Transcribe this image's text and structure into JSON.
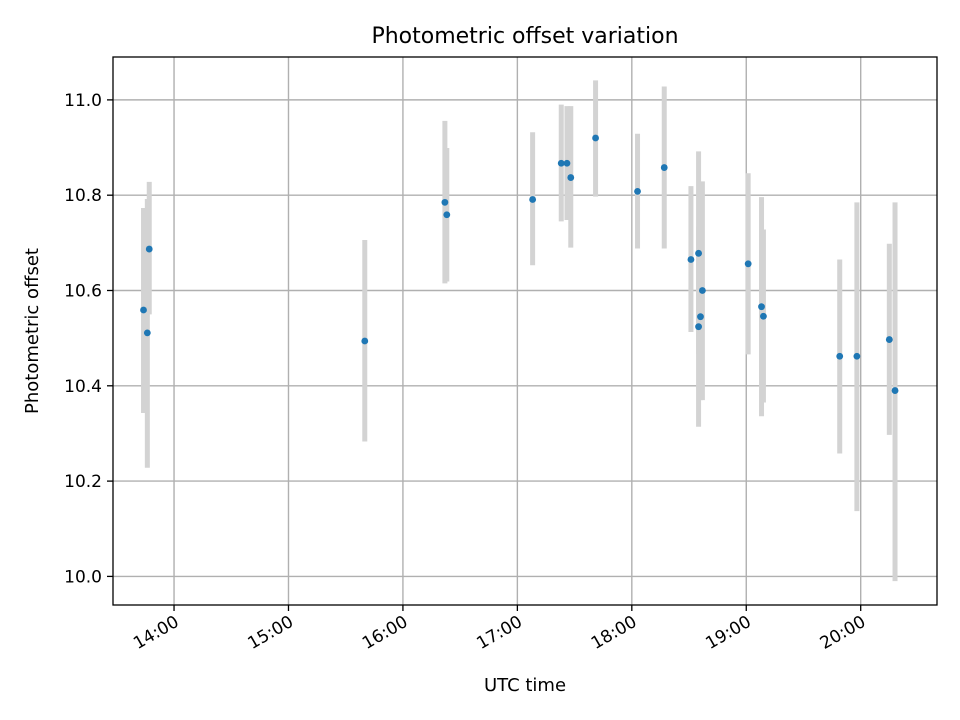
{
  "chart_data": {
    "type": "scatter",
    "title": "Photometric offset variation",
    "xlabel": "UTC time",
    "ylabel": "Photometric offset",
    "x_unit": "UTC time (HH:MM)",
    "xlim": [
      "13:28",
      "20:40"
    ],
    "ylim": [
      9.94,
      11.09
    ],
    "x_ticks": [
      "14:00",
      "15:00",
      "16:00",
      "17:00",
      "18:00",
      "19:00",
      "20:00"
    ],
    "y_ticks": [
      "10.0",
      "10.2",
      "10.4",
      "10.6",
      "10.8",
      "11.0"
    ],
    "grid": true,
    "point_color": "#1f77b4",
    "errorbar_color": "#d3d3d3",
    "points": [
      {
        "x": "13:47",
        "y": 10.687,
        "lo": 10.55,
        "hi": 10.828
      },
      {
        "x": "13:44",
        "y": 10.559,
        "lo": 10.343,
        "hi": 10.773
      },
      {
        "x": "13:46",
        "y": 10.511,
        "lo": 10.228,
        "hi": 10.792
      },
      {
        "x": "15:40",
        "y": 10.494,
        "lo": 10.283,
        "hi": 10.706
      },
      {
        "x": "16:22",
        "y": 10.785,
        "lo": 10.615,
        "hi": 10.956
      },
      {
        "x": "16:23",
        "y": 10.759,
        "lo": 10.619,
        "hi": 10.899
      },
      {
        "x": "17:08",
        "y": 10.791,
        "lo": 10.653,
        "hi": 10.932
      },
      {
        "x": "17:23",
        "y": 10.867,
        "lo": 10.745,
        "hi": 10.99
      },
      {
        "x": "17:26",
        "y": 10.867,
        "lo": 10.748,
        "hi": 10.987
      },
      {
        "x": "17:28",
        "y": 10.837,
        "lo": 10.69,
        "hi": 10.987
      },
      {
        "x": "17:41",
        "y": 10.92,
        "lo": 10.797,
        "hi": 11.041
      },
      {
        "x": "18:03",
        "y": 10.808,
        "lo": 10.688,
        "hi": 10.929
      },
      {
        "x": "18:17",
        "y": 10.858,
        "lo": 10.688,
        "hi": 11.028
      },
      {
        "x": "18:31",
        "y": 10.665,
        "lo": 10.513,
        "hi": 10.819
      },
      {
        "x": "18:35",
        "y": 10.678,
        "lo": 10.467,
        "hi": 10.892
      },
      {
        "x": "18:35",
        "y": 10.524,
        "lo": 10.314,
        "hi": 10.734
      },
      {
        "x": "18:36",
        "y": 10.545,
        "lo": 10.37,
        "hi": 10.72
      },
      {
        "x": "18:37",
        "y": 10.6,
        "lo": 10.37,
        "hi": 10.829
      },
      {
        "x": "19:01",
        "y": 10.656,
        "lo": 10.466,
        "hi": 10.846
      },
      {
        "x": "19:08",
        "y": 10.566,
        "lo": 10.336,
        "hi": 10.796
      },
      {
        "x": "19:09",
        "y": 10.546,
        "lo": 10.365,
        "hi": 10.728
      },
      {
        "x": "19:49",
        "y": 10.462,
        "lo": 10.258,
        "hi": 10.665
      },
      {
        "x": "19:58",
        "y": 10.462,
        "lo": 10.137,
        "hi": 10.785
      },
      {
        "x": "20:15",
        "y": 10.497,
        "lo": 10.297,
        "hi": 10.698
      },
      {
        "x": "20:18",
        "y": 10.39,
        "lo": 9.99,
        "hi": 10.785
      }
    ]
  }
}
